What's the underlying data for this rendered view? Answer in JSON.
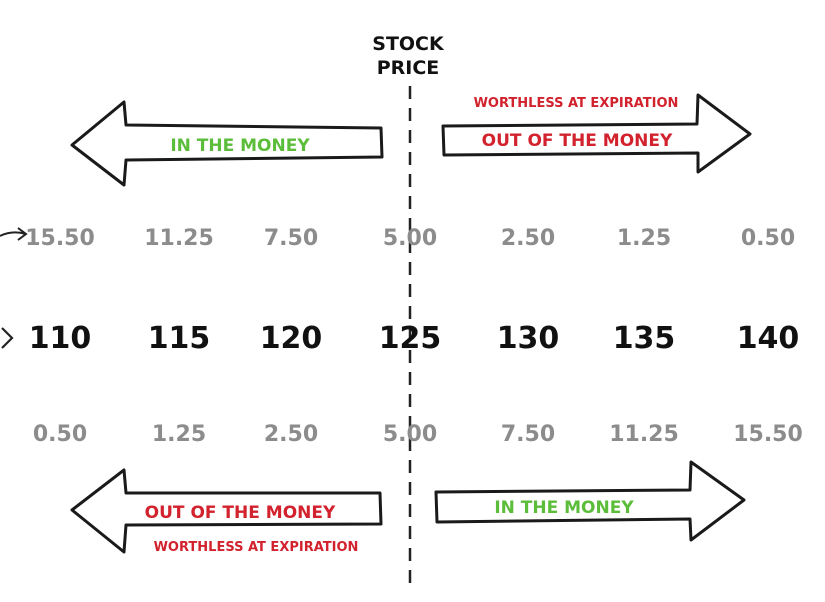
{
  "header": {
    "title_line1": "STOCK",
    "title_line2": "PRICE"
  },
  "top_arrows": {
    "left_label": "IN THE MONEY",
    "right_label": "OUT OF THE MONEY",
    "right_caption": "WORTHLESS AT EXPIRATION"
  },
  "bottom_arrows": {
    "left_label": "OUT OF THE MONEY",
    "left_caption": "WORTHLESS AT EXPIRATION",
    "right_label": "IN THE MONEY"
  },
  "call_premiums": [
    "15.50",
    "11.25",
    "7.50",
    "5.00",
    "2.50",
    "1.25",
    "0.50"
  ],
  "strike_prices": [
    "110",
    "115",
    "120",
    "125",
    "130",
    "135",
    "140"
  ],
  "put_premiums": [
    "0.50",
    "1.25",
    "2.50",
    "5.00",
    "7.50",
    "11.25",
    "15.50"
  ],
  "colors": {
    "in_the_money": "#5bbd3a",
    "out_of_the_money": "#d2222d",
    "premium": "#8c8c8c",
    "strike": "#111111"
  }
}
